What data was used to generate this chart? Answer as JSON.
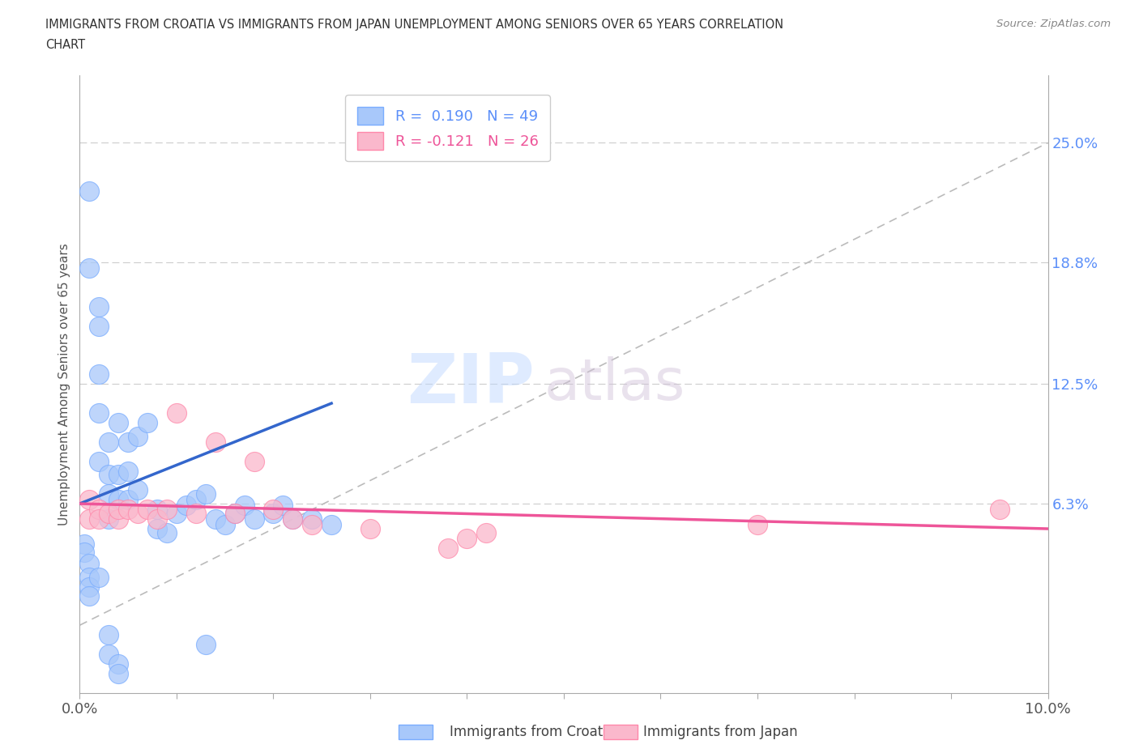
{
  "title_line1": "IMMIGRANTS FROM CROATIA VS IMMIGRANTS FROM JAPAN UNEMPLOYMENT AMONG SENIORS OVER 65 YEARS CORRELATION",
  "title_line2": "CHART",
  "source_text": "Source: ZipAtlas.com",
  "ylabel": "Unemployment Among Seniors over 65 years",
  "xlim": [
    0.0,
    0.1
  ],
  "ylim": [
    -0.035,
    0.285
  ],
  "ytick_positions": [
    0.063,
    0.125,
    0.188,
    0.25
  ],
  "ytick_labels": [
    "6.3%",
    "12.5%",
    "18.8%",
    "25.0%"
  ],
  "ytick_color": "#5b8ff9",
  "croatia_color": "#a8c8fa",
  "japan_color": "#fab8cc",
  "croatia_edge_color": "#7aadff",
  "japan_edge_color": "#ff88aa",
  "croatia_line_color": "#3366cc",
  "japan_line_color": "#ee5599",
  "diagonal_color": "#bbbbbb",
  "R_croatia": 0.19,
  "N_croatia": 49,
  "R_japan": -0.121,
  "N_japan": 26,
  "watermark_color": "#c8deff",
  "croatia_x": [
    0.001,
    0.001,
    0.002,
    0.002,
    0.002,
    0.002,
    0.002,
    0.003,
    0.003,
    0.003,
    0.003,
    0.004,
    0.004,
    0.004,
    0.005,
    0.005,
    0.005,
    0.006,
    0.006,
    0.007,
    0.008,
    0.008,
    0.009,
    0.01,
    0.011,
    0.012,
    0.013,
    0.014,
    0.015,
    0.016,
    0.017,
    0.018,
    0.02,
    0.021,
    0.022,
    0.024,
    0.026,
    0.0005,
    0.0005,
    0.001,
    0.001,
    0.001,
    0.001,
    0.002,
    0.003,
    0.003,
    0.004,
    0.004,
    0.013
  ],
  "croatia_y": [
    0.225,
    0.185,
    0.165,
    0.155,
    0.13,
    0.11,
    0.085,
    0.095,
    0.078,
    0.068,
    0.055,
    0.105,
    0.078,
    0.065,
    0.095,
    0.08,
    0.065,
    0.098,
    0.07,
    0.105,
    0.06,
    0.05,
    0.048,
    0.058,
    0.062,
    0.065,
    0.068,
    0.055,
    0.052,
    0.058,
    0.062,
    0.055,
    0.058,
    0.062,
    0.055,
    0.055,
    0.052,
    0.042,
    0.038,
    0.032,
    0.025,
    0.02,
    0.015,
    0.025,
    -0.005,
    -0.015,
    -0.02,
    -0.025,
    -0.01
  ],
  "japan_x": [
    0.001,
    0.001,
    0.002,
    0.002,
    0.003,
    0.004,
    0.004,
    0.005,
    0.006,
    0.007,
    0.008,
    0.009,
    0.01,
    0.012,
    0.014,
    0.016,
    0.018,
    0.02,
    0.022,
    0.024,
    0.03,
    0.038,
    0.04,
    0.042,
    0.07,
    0.095
  ],
  "japan_y": [
    0.065,
    0.055,
    0.06,
    0.055,
    0.058,
    0.055,
    0.06,
    0.06,
    0.058,
    0.06,
    0.055,
    0.06,
    0.11,
    0.058,
    0.095,
    0.058,
    0.085,
    0.06,
    0.055,
    0.052,
    0.05,
    0.04,
    0.045,
    0.048,
    0.052,
    0.06
  ],
  "croatia_trendline_x": [
    0.0,
    0.026
  ],
  "croatia_trendline_y": [
    0.063,
    0.115
  ],
  "japan_trendline_x": [
    0.0,
    0.1
  ],
  "japan_trendline_y": [
    0.063,
    0.05
  ]
}
